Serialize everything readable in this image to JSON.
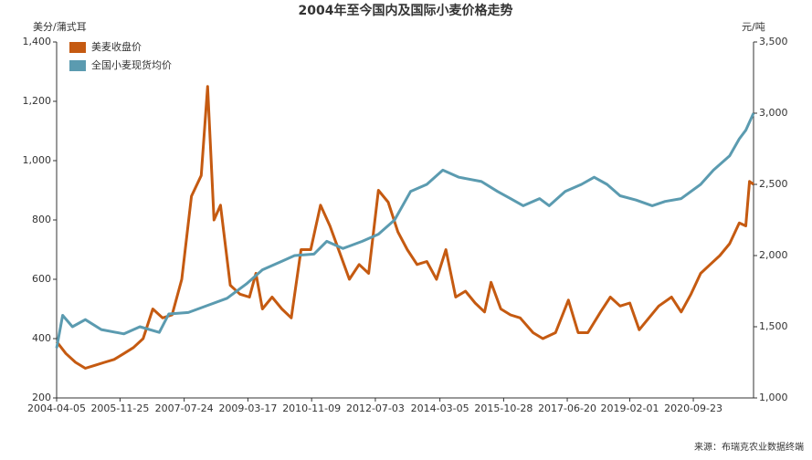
{
  "chart_data": {
    "type": "line",
    "title": "2004年至今国内及国际小麦价格走势",
    "y_label": "美分/蒲式耳",
    "y2_label": "元/吨",
    "source": "来源：布瑞克农业数据终端",
    "xlim": [
      "2004-04-05",
      "2022-04-15"
    ],
    "xticks": [
      "2004-04-05",
      "2005-11-25",
      "2007-07-24",
      "2009-03-17",
      "2010-11-09",
      "2012-07-03",
      "2014-03-05",
      "2015-10-28",
      "2017-06-20",
      "2019-02-01",
      "2020-09-23"
    ],
    "ylim": [
      200,
      1400
    ],
    "yticks": [
      200,
      400,
      600,
      800,
      {
        "value": 1000,
        "label": "1,000"
      },
      {
        "value": 1200,
        "label": "1,200"
      },
      {
        "value": 1400,
        "label": "1,400"
      }
    ],
    "y2lim": [
      1000,
      3500
    ],
    "y2ticks": [
      {
        "value": 1000,
        "label": "1,000"
      },
      {
        "value": 1500,
        "label": "1,500"
      },
      {
        "value": 2000,
        "label": "2,000"
      },
      {
        "value": 2500,
        "label": "2,500"
      },
      {
        "value": 3000,
        "label": "3,000"
      },
      {
        "value": 3500,
        "label": "3,500"
      }
    ],
    "legend": "top-left",
    "series": [
      {
        "name": "美麦收盘价",
        "color": "#c55a11",
        "x": [
          "2004-04-05",
          "2004-07-01",
          "2004-10-01",
          "2005-01-01",
          "2005-04-01",
          "2005-07-01",
          "2005-10-01",
          "2006-01-01",
          "2006-04-01",
          "2006-07-01",
          "2006-10-01",
          "2007-01-01",
          "2007-04-01",
          "2007-07-01",
          "2007-10-01",
          "2008-01-01",
          "2008-03-01",
          "2008-05-01",
          "2008-07-01",
          "2008-10-01",
          "2009-01-01",
          "2009-04-01",
          "2009-06-01",
          "2009-08-01",
          "2009-11-01",
          "2010-02-01",
          "2010-05-01",
          "2010-08-01",
          "2010-11-01",
          "2011-02-01",
          "2011-05-01",
          "2011-08-01",
          "2011-11-01",
          "2012-02-01",
          "2012-05-01",
          "2012-08-01",
          "2012-11-01",
          "2013-02-01",
          "2013-05-01",
          "2013-08-01",
          "2013-11-01",
          "2014-02-01",
          "2014-05-01",
          "2014-08-01",
          "2014-11-01",
          "2015-02-01",
          "2015-05-01",
          "2015-07-01",
          "2015-10-01",
          "2016-01-01",
          "2016-04-01",
          "2016-08-01",
          "2016-11-01",
          "2017-03-01",
          "2017-07-01",
          "2017-10-01",
          "2018-01-01",
          "2018-05-01",
          "2018-08-01",
          "2018-11-01",
          "2019-02-01",
          "2019-05-01",
          "2019-08-01",
          "2019-11-01",
          "2020-03-01",
          "2020-06-01",
          "2020-09-01",
          "2020-12-01",
          "2021-03-01",
          "2021-06-01",
          "2021-09-01",
          "2021-12-01",
          "2022-02-01",
          "2022-03-08",
          "2022-04-15"
        ],
        "values": [
          390,
          350,
          320,
          300,
          310,
          320,
          330,
          350,
          370,
          400,
          500,
          470,
          480,
          600,
          880,
          950,
          1250,
          800,
          850,
          580,
          550,
          540,
          620,
          500,
          540,
          500,
          470,
          700,
          700,
          850,
          780,
          690,
          600,
          650,
          620,
          900,
          860,
          760,
          700,
          650,
          660,
          600,
          700,
          540,
          560,
          520,
          490,
          590,
          500,
          480,
          470,
          420,
          400,
          420,
          530,
          420,
          420,
          490,
          540,
          510,
          520,
          430,
          470,
          510,
          540,
          490,
          550,
          620,
          650,
          680,
          720,
          790,
          780,
          930,
          920
        ]
      },
      {
        "name": "全国小麦现货均价",
        "color": "#5b9bb0",
        "axis": "y2",
        "x": [
          "2004-04-05",
          "2004-06-01",
          "2004-09-01",
          "2005-01-01",
          "2005-06-01",
          "2006-01-01",
          "2006-06-01",
          "2006-12-01",
          "2007-03-01",
          "2007-09-01",
          "2008-03-01",
          "2008-09-01",
          "2009-03-01",
          "2009-08-01",
          "2010-02-01",
          "2010-06-01",
          "2010-12-01",
          "2011-04-01",
          "2011-09-01",
          "2012-03-01",
          "2012-08-01",
          "2013-01-01",
          "2013-06-01",
          "2013-11-01",
          "2014-04-01",
          "2014-09-01",
          "2015-04-01",
          "2015-09-01",
          "2016-01-01",
          "2016-05-01",
          "2016-10-01",
          "2017-01-01",
          "2017-06-01",
          "2017-11-01",
          "2018-03-01",
          "2018-07-01",
          "2018-11-01",
          "2019-04-01",
          "2019-09-01",
          "2020-01-01",
          "2020-06-01",
          "2020-12-01",
          "2021-04-01",
          "2021-09-01",
          "2021-12-01",
          "2022-02-01",
          "2022-04-15"
        ],
        "values": [
          1350,
          1580,
          1500,
          1550,
          1480,
          1450,
          1500,
          1460,
          1590,
          1600,
          1650,
          1700,
          1800,
          1900,
          1960,
          2000,
          2010,
          2100,
          2050,
          2100,
          2150,
          2250,
          2450,
          2500,
          2600,
          2550,
          2520,
          2450,
          2400,
          2350,
          2400,
          2350,
          2450,
          2500,
          2550,
          2500,
          2420,
          2390,
          2350,
          2380,
          2400,
          2500,
          2600,
          2700,
          2820,
          2880,
          3000
        ]
      }
    ]
  }
}
